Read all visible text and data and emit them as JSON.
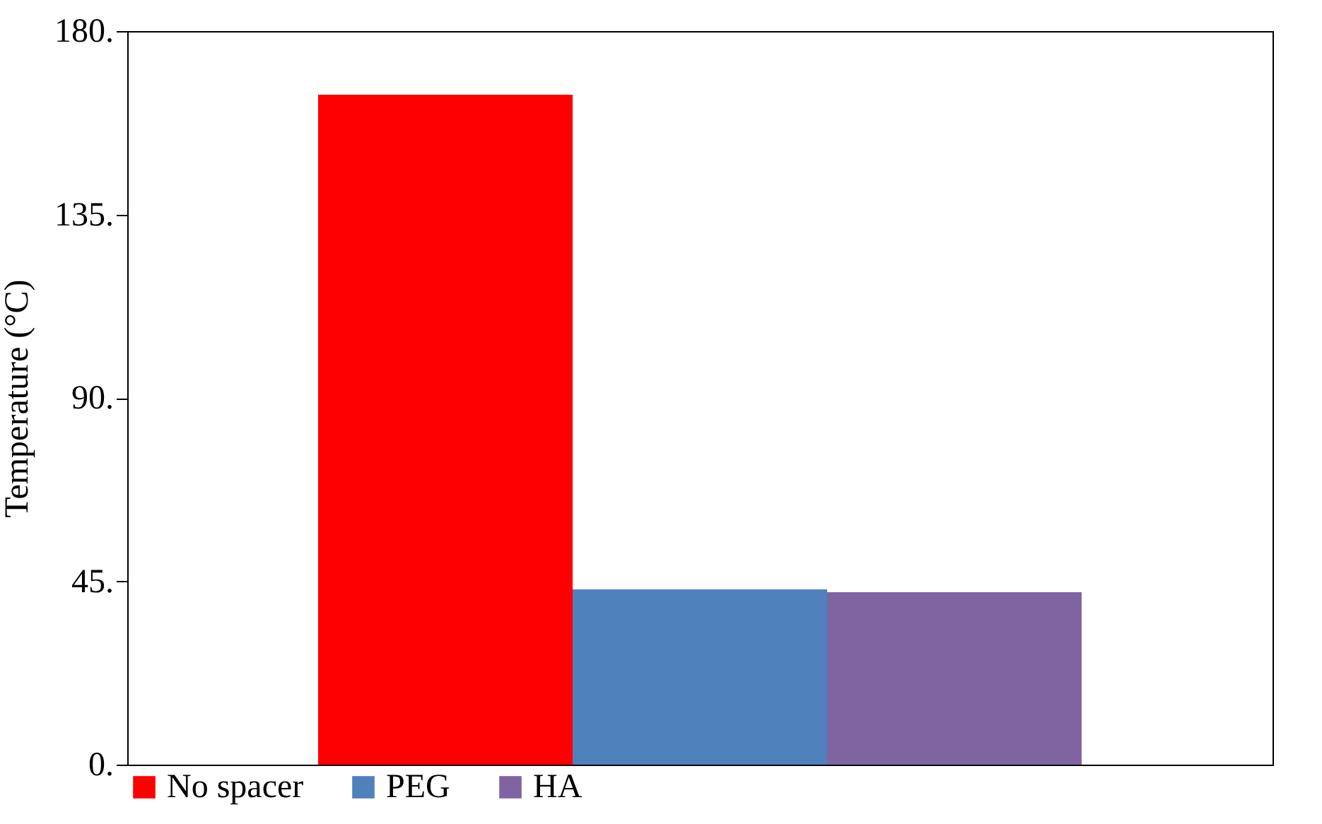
{
  "chart_data": {
    "type": "bar",
    "ylabel": "Temperature (°C)",
    "categories": [
      null
    ],
    "series": [
      {
        "name": "No spacer",
        "color": "#ff0000",
        "values": [
          164.4
        ]
      },
      {
        "name": "PEG",
        "color": "#4f81bd",
        "values": [
          43
        ]
      },
      {
        "name": "HA",
        "color": "#8064a2",
        "values": [
          42.3
        ]
      }
    ],
    "ylim": [
      0,
      180
    ],
    "yticks": [
      {
        "value": 0,
        "label": "0."
      },
      {
        "value": 45,
        "label": "45."
      },
      {
        "value": 90,
        "label": "90."
      },
      {
        "value": 135,
        "label": "135."
      },
      {
        "value": 180,
        "label": "180."
      }
    ],
    "legend": "bottom",
    "tick_labels": "y",
    "grid": false
  }
}
